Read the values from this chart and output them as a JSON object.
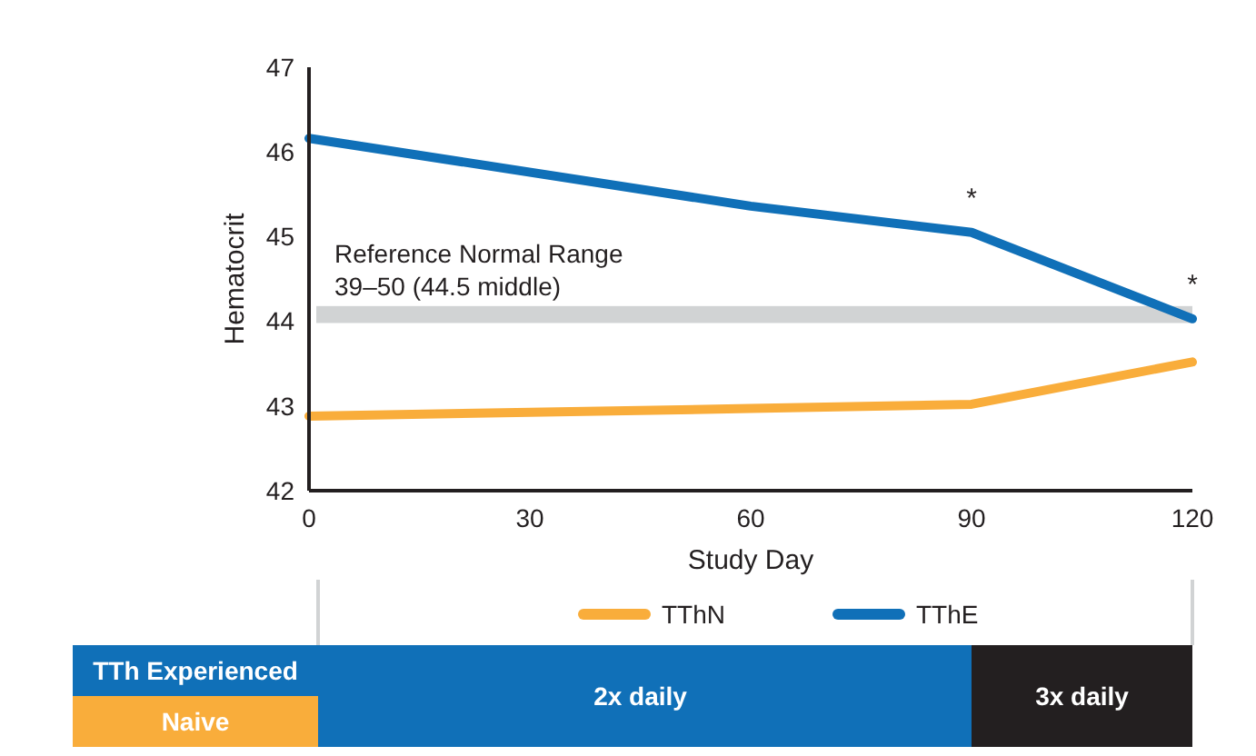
{
  "chart_data": {
    "type": "line",
    "xlabel": "Study Day",
    "ylabel": "Hematocrit",
    "x": [
      0,
      60,
      90,
      120
    ],
    "xlim": [
      0,
      120
    ],
    "xticks": [
      0,
      30,
      60,
      90,
      120
    ],
    "ylim": [
      42,
      47
    ],
    "yticks": [
      42,
      43,
      44,
      45,
      46,
      47
    ],
    "series": [
      {
        "name": "TThN",
        "color": "#f9ad3b",
        "values": [
          42.88,
          42.97,
          43.02,
          43.52
        ]
      },
      {
        "name": "TThE",
        "color": "#1070b8",
        "values": [
          46.16,
          45.36,
          45.05,
          44.03
        ]
      }
    ],
    "bands": [
      {
        "axis": "y",
        "from": 43.98,
        "to": 44.18,
        "label": "Reference Normal Range\n39–50 (44.5 middle)",
        "color": "#d1d3d4"
      }
    ],
    "annotations": [
      {
        "text": "*",
        "x": 90,
        "y": 45.05
      },
      {
        "text": "*",
        "x": 120,
        "y": 44.03
      },
      "TTh Experienced",
      "Naive",
      "2x daily",
      "3x daily"
    ],
    "legend": "bottom",
    "grid": false,
    "marker": "none",
    "line_style": "solid"
  }
}
